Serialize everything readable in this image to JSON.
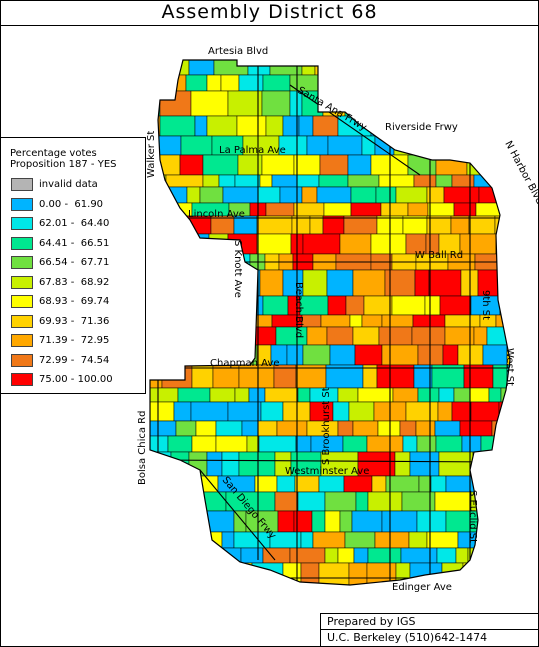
{
  "title": "Assembly District 68",
  "legend": {
    "title_line1": "Percentage votes",
    "title_line2": "Proposition 187 - YES",
    "items": [
      {
        "label": "invalid data",
        "color": "#b4b4b4"
      },
      {
        "label": "0.00 -  61.90",
        "color": "#00b4ff"
      },
      {
        "label": "62.01 -  64.40",
        "color": "#00e8e8"
      },
      {
        "label": "64.41 -  66.51",
        "color": "#00e890"
      },
      {
        "label": "66.54 -  67.71",
        "color": "#70e040"
      },
      {
        "label": "67.83 -  68.92",
        "color": "#c8f000"
      },
      {
        "label": "68.93 -  69.74",
        "color": "#ffff00"
      },
      {
        "label": "69.93 -  71.36",
        "color": "#ffd200"
      },
      {
        "label": "71.39 -  72.95",
        "color": "#ffa800"
      },
      {
        "label": "72.99 -  74.54",
        "color": "#f07818"
      },
      {
        "label": "75.00 - 100.00",
        "color": "#ff0000"
      }
    ]
  },
  "streets": {
    "artesia": "Artesia Blvd",
    "santa_ana": "Santa Ana Frwy",
    "riverside": "Riverside Frwy",
    "walker": "Walker St",
    "la_palma": "La Palma Ave",
    "n_harbor": "N Harbor Blvd",
    "lincoln": "Lincoln Ave",
    "w_ball": "W Ball Rd",
    "s_knott": "S Knott Ave",
    "beach": "Beach Blvd",
    "s_brookhurst": "S Brookhurst St",
    "ninth": "9th St",
    "west": "West St",
    "chapman": "Chapman Ave",
    "bolsa_chica": "Bolsa Chica Rd",
    "westminster": "Westminster Ave",
    "san_diego": "San Diego Frwy",
    "s_euclid": "S Euclid St",
    "edinger": "Edinger Ave"
  },
  "credit": {
    "line1": "Prepared by IGS",
    "line2": "U.C. Berkeley  (510)642-1474"
  }
}
